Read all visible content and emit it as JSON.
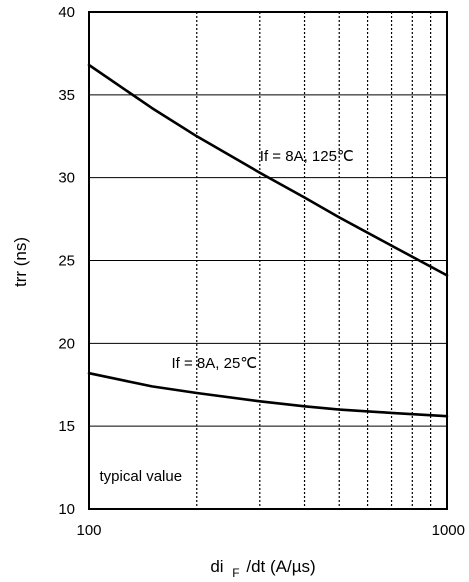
{
  "chart_data": {
    "type": "line",
    "xscale": "log",
    "xlim": [
      100,
      1000
    ],
    "ylim": [
      10,
      40
    ],
    "xlabel_parts": {
      "pre": "di",
      "sub": "F",
      "post": "/dt  (A/µs)"
    },
    "ylabel": "trr  (ns)",
    "x_tick_labels": [
      {
        "value": 100,
        "label": "100"
      },
      {
        "value": 1000,
        "label": "1000"
      }
    ],
    "y_tick_labels": [
      {
        "value": 10,
        "label": "10"
      },
      {
        "value": 15,
        "label": "15"
      },
      {
        "value": 20,
        "label": "20"
      },
      {
        "value": 25,
        "label": "25"
      },
      {
        "value": 30,
        "label": "30"
      },
      {
        "value": 35,
        "label": "35"
      },
      {
        "value": 40,
        "label": "40"
      }
    ],
    "x_minor_grid": [
      200,
      300,
      400,
      500,
      600,
      700,
      800,
      900
    ],
    "y_grid": [
      15,
      20,
      25,
      30,
      35
    ],
    "grid": true,
    "series": [
      {
        "name": "If = 8A, 125℃",
        "x": [
          100,
          150,
          200,
          300,
          400,
          500,
          700,
          1000
        ],
        "y": [
          36.8,
          34.2,
          32.5,
          30.3,
          28.8,
          27.6,
          25.9,
          24.1
        ]
      },
      {
        "name": "If = 8A, 25℃",
        "x": [
          100,
          150,
          200,
          300,
          400,
          500,
          700,
          1000
        ],
        "y": [
          18.2,
          17.4,
          17.0,
          16.5,
          16.2,
          16.0,
          15.8,
          15.6
        ]
      }
    ],
    "annotations": [
      {
        "text": "If = 8A, 125℃",
        "x": 300,
        "y": 31
      },
      {
        "text": "If = 8A, 25℃",
        "x": 170,
        "y": 18.5
      },
      {
        "text": "typical value",
        "x": 107,
        "y": 11.7
      }
    ]
  }
}
